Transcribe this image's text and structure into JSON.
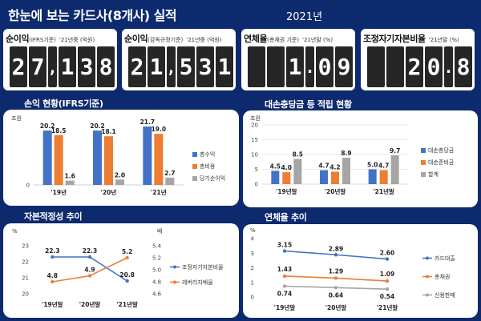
{
  "header": {
    "title": "한눈에 보는 카드사(8개사) 실적",
    "year": "2021년"
  },
  "kpis": [
    {
      "label_main": "순이익",
      "label_sub": "(IFRS기준)",
      "note": "'21년중 (억원)",
      "value": "27,138"
    },
    {
      "label_main": "순이익",
      "label_sub": "(감독규정기준)",
      "note": "'21년중 (억원)",
      "value": "21,531"
    },
    {
      "label_main": "연체율",
      "label_sub": "(총채권 기준)",
      "note": "'21년말 (%)",
      "value": "1.09"
    },
    {
      "label_main": "조정자기자본비율",
      "label_sub": "",
      "note": "'21년말 (%)",
      "value": "20.8"
    }
  ],
  "panels": {
    "profit": {
      "title": "손익 현황(IFRS기준)"
    },
    "reserve": {
      "title": "대손충당금 등 적립 현황"
    },
    "capital": {
      "title": "자본적정성 추이"
    },
    "delinquency": {
      "title": "연체율 추이"
    }
  },
  "chart_data": [
    {
      "id": "profit",
      "type": "bar",
      "unit_label": "조원",
      "categories": [
        "'19년",
        "'20년",
        "'21년"
      ],
      "series": [
        {
          "name": "총수익",
          "values": [
            20.2,
            20.2,
            21.7
          ],
          "color": "#4472c4"
        },
        {
          "name": "총비용",
          "values": [
            18.5,
            18.1,
            19.0
          ],
          "color": "#ed7d31"
        },
        {
          "name": "당기순이익",
          "values": [
            1.6,
            2.0,
            2.7
          ],
          "color": "#a5a5a5"
        }
      ],
      "ylim": [
        0,
        25
      ]
    },
    {
      "id": "reserve",
      "type": "bar",
      "unit_label": "조원",
      "categories": [
        "'19년말",
        "'20년말",
        "'21년말"
      ],
      "yticks": [
        0,
        5,
        10,
        15,
        20
      ],
      "series": [
        {
          "name": "대손충당금",
          "values": [
            4.5,
            4.7,
            5.0
          ],
          "color": "#4472c4"
        },
        {
          "name": "대손준비금",
          "values": [
            4.0,
            4.2,
            4.7
          ],
          "color": "#ed7d31"
        },
        {
          "name": "합계",
          "values": [
            8.5,
            8.9,
            9.7
          ],
          "color": "#a5a5a5"
        }
      ],
      "ylim": [
        0,
        20
      ]
    },
    {
      "id": "capital",
      "type": "line",
      "unit_left": "%",
      "unit_right": "배",
      "categories": [
        "'19년말",
        "'20년말",
        "'21년말"
      ],
      "yticks_left": [
        20,
        21,
        22,
        23
      ],
      "yticks_right": [
        4.6,
        4.8,
        5.0,
        5.2,
        5.4
      ],
      "series": [
        {
          "name": "조정자기자본비율",
          "values": [
            22.3,
            22.3,
            20.8
          ],
          "color": "#4472c4",
          "axis": "left"
        },
        {
          "name": "레버리지배율",
          "values": [
            4.8,
            4.9,
            5.2
          ],
          "color": "#ed7d31",
          "axis": "right"
        }
      ],
      "ylim_left": [
        20,
        23
      ],
      "ylim_right": [
        4.6,
        5.4
      ]
    },
    {
      "id": "delinquency",
      "type": "line",
      "unit_label": "%",
      "categories": [
        "'19년말",
        "'20년말",
        "'21년말"
      ],
      "yticks": [
        0,
        1,
        2,
        3,
        4
      ],
      "series": [
        {
          "name": "카드대출",
          "values": [
            3.15,
            2.89,
            2.6
          ],
          "color": "#4472c4"
        },
        {
          "name": "총채권",
          "values": [
            1.43,
            1.29,
            1.09
          ],
          "color": "#ed7d31"
        },
        {
          "name": "신용판매",
          "values": [
            0.74,
            0.64,
            0.54
          ],
          "color": "#a5a5a5"
        }
      ],
      "ylim": [
        0,
        4
      ]
    }
  ]
}
